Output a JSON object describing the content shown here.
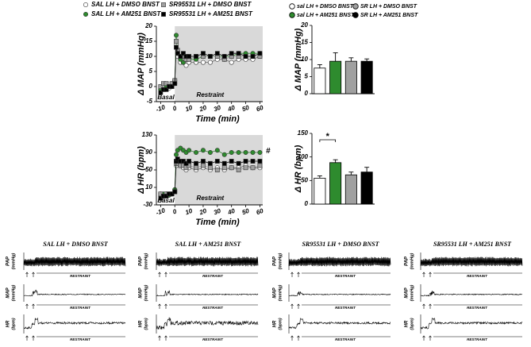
{
  "chart_data": [
    {
      "type": "line",
      "ylabel": "Δ MAP (mmHg)",
      "xlabel": "Time (min)",
      "x": [
        -10,
        -8,
        -6,
        -4,
        -2,
        0,
        1,
        2,
        4,
        6,
        8,
        10,
        15,
        20,
        25,
        30,
        35,
        40,
        45,
        50,
        55,
        60
      ],
      "xlim": [
        -13,
        62
      ],
      "xticks": [
        -10,
        0,
        10,
        20,
        30,
        40,
        50,
        60
      ],
      "ylim": [
        -5,
        20
      ],
      "yticks": [
        -5,
        0,
        5,
        10,
        15,
        20
      ],
      "shade_x": [
        0,
        62
      ],
      "shade_color": "#d9d9d9",
      "annotations": [
        "Basal",
        "Restraint"
      ],
      "series": [
        {
          "name": "SAL LH + DMSO BNST",
          "color": "#ffffff",
          "marker": "circle",
          "values": [
            -1,
            0,
            0.5,
            -0.5,
            0,
            1,
            14,
            10,
            8,
            8,
            7,
            8,
            8,
            8,
            8,
            9,
            9,
            8,
            9,
            9,
            9,
            10
          ]
        },
        {
          "name": "SAL LH + AM251 BNST",
          "color": "#2e8b2e",
          "marker": "circle",
          "values": [
            -1,
            -1,
            0,
            0,
            1,
            2,
            17,
            11,
            9,
            8,
            9,
            9,
            9,
            10,
            10,
            10,
            10,
            10,
            11,
            11,
            11,
            11
          ]
        },
        {
          "name": "SR95531 LH + DMSO BNST",
          "color": "#a0a0a0",
          "marker": "square",
          "values": [
            0,
            1,
            1,
            0,
            1,
            2,
            15,
            12,
            10,
            10,
            9,
            9,
            10,
            10,
            10,
            10,
            9,
            10,
            10,
            10,
            10,
            10
          ]
        },
        {
          "name": "SR95531 LH + AM251 BNST",
          "color": "#000000",
          "marker": "square",
          "values": [
            -2,
            -1,
            -1,
            0,
            0,
            1,
            13,
            11,
            10,
            11,
            10,
            10,
            10,
            11,
            10,
            11,
            10,
            11,
            11,
            10,
            10,
            11
          ]
        }
      ]
    },
    {
      "type": "line",
      "ylabel": "Δ HR (bpm)",
      "xlabel": "Time (min)",
      "x": [
        -10,
        -8,
        -6,
        -4,
        -2,
        0,
        1,
        2,
        4,
        6,
        8,
        10,
        15,
        20,
        25,
        30,
        35,
        40,
        45,
        50,
        55,
        60
      ],
      "xlim": [
        -13,
        62
      ],
      "xticks": [
        -10,
        0,
        10,
        20,
        30,
        40,
        50,
        60
      ],
      "ylim": [
        -30,
        130
      ],
      "yticks": [
        -30,
        10,
        50,
        90,
        130
      ],
      "shade_x": [
        0,
        62
      ],
      "shade_color": "#d9d9d9",
      "annotations": [
        "Basal",
        "Restraint",
        "#"
      ],
      "series": [
        {
          "color": "#ffffff",
          "marker": "circle",
          "values": [
            -5,
            -10,
            -8,
            -5,
            -5,
            0,
            60,
            65,
            60,
            55,
            50,
            55,
            50,
            55,
            50,
            55,
            50,
            55,
            55,
            60,
            55,
            55
          ]
        },
        {
          "color": "#2e8b2e",
          "marker": "circle",
          "values": [
            -10,
            -5,
            -5,
            -8,
            -5,
            5,
            85,
            95,
            100,
            95,
            90,
            95,
            90,
            95,
            90,
            95,
            85,
            90,
            90,
            90,
            90,
            90
          ]
        },
        {
          "color": "#a0a0a0",
          "marker": "square",
          "values": [
            -5,
            -10,
            -5,
            -5,
            -5,
            0,
            65,
            70,
            60,
            60,
            55,
            60,
            55,
            60,
            55,
            50,
            55,
            55,
            50,
            55,
            55,
            60
          ]
        },
        {
          "color": "#000000",
          "marker": "square",
          "values": [
            -15,
            -10,
            -10,
            -5,
            -5,
            0,
            70,
            75,
            70,
            70,
            65,
            70,
            65,
            70,
            65,
            70,
            65,
            70,
            65,
            70,
            70,
            70
          ]
        }
      ]
    },
    {
      "type": "bar",
      "ylabel": "Δ MAP (mmHg)",
      "categories": [
        "sal LH + DMSO BNST",
        "sal LH + AM251 BNST",
        "SR LH + DMSO BNST",
        "SR LH + AM251 BNST"
      ],
      "colors": [
        "#ffffff",
        "#2e8b2e",
        "#a0a0a0",
        "#000000"
      ],
      "values": [
        7.5,
        9.5,
        9.5,
        9.5
      ],
      "errors": [
        1,
        2.5,
        1,
        0.7
      ],
      "ylim": [
        0,
        20
      ],
      "yticks": [
        0,
        5,
        10,
        15,
        20
      ]
    },
    {
      "type": "bar",
      "ylabel": "Δ HR (bpm)",
      "colors": [
        "#ffffff",
        "#2e8b2e",
        "#a0a0a0",
        "#000000"
      ],
      "values": [
        55,
        88,
        62,
        68
      ],
      "errors": [
        5,
        6,
        6,
        10
      ],
      "ylim": [
        0,
        150
      ],
      "yticks": [
        0,
        50,
        100,
        150
      ],
      "annotations": [
        "*"
      ]
    }
  ],
  "trace_panels": [
    {
      "title": "SAL LH + DMSO BNST",
      "rows": [
        {
          "label": "PAP",
          "unit": "(mmHg)",
          "event": "RESTRAINT"
        },
        {
          "label": "MAP",
          "unit": "(mmHg)",
          "event": "RESTRAINT"
        },
        {
          "label": "HR",
          "unit": "(bpm)",
          "event": "RESTRAINT"
        }
      ]
    },
    {
      "title": "SAL LH + AM251 BNST",
      "rows": [
        {
          "label": "PAP",
          "unit": "(mmHg)",
          "event": "RESTRAINT"
        },
        {
          "label": "MAP",
          "unit": "(mmHg)",
          "event": "RESTRAINT"
        },
        {
          "label": "HR",
          "unit": "(bpm)",
          "event": "RESTRAINT"
        }
      ]
    },
    {
      "title": "SR95531 LH + DMSO BNST",
      "rows": [
        {
          "label": "PAP",
          "unit": "(mmHg)",
          "event": "RESTRAINT"
        },
        {
          "label": "MAP",
          "unit": "(mmHg)",
          "event": "RESTRAINT"
        },
        {
          "label": "HR",
          "unit": "(bpm)",
          "event": "RESTRAINT"
        }
      ]
    },
    {
      "title": "SR95531 LH + AM251 BNST",
      "rows": [
        {
          "label": "PAP",
          "unit": "(mmHg)",
          "event": "RESTRAINT"
        },
        {
          "label": "MAP",
          "unit": "(mmHg)",
          "event": "RESTRAINT"
        },
        {
          "label": "HR",
          "unit": "(bpm)",
          "event": "RESTRAINT"
        }
      ]
    }
  ]
}
